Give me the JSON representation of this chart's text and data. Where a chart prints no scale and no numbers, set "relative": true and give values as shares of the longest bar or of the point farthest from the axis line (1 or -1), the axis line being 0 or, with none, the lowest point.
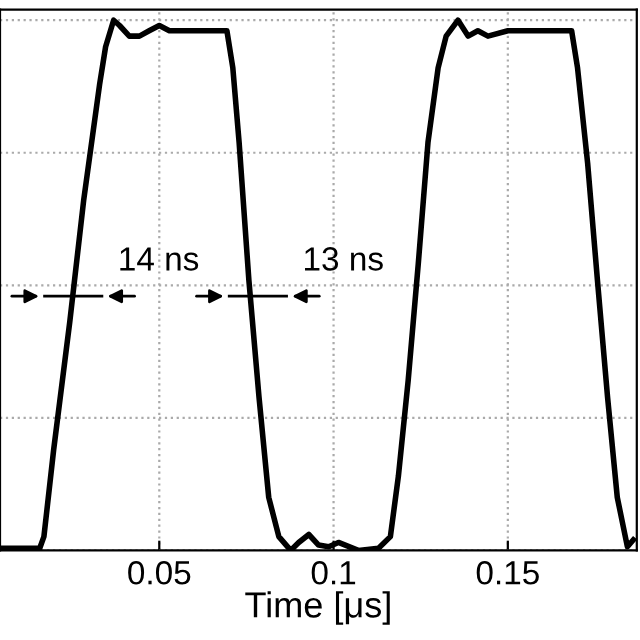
{
  "chart_data": {
    "type": "line",
    "xlabel": "Time [μs]",
    "relative": true,
    "grid": true,
    "legend": false,
    "tick_labels": "x",
    "xlim": [
      0.0043,
      0.187
    ],
    "xticks": [
      0.05,
      0.1,
      0.15
    ],
    "series": [
      {
        "color": "#000000",
        "x": [
          0.0043,
          0.0157,
          0.0169,
          0.0197,
          0.0243,
          0.0283,
          0.0329,
          0.0346,
          0.0369,
          0.0386,
          0.0414,
          0.0443,
          0.0471,
          0.05,
          0.0529,
          0.0557,
          0.0614,
          0.0671,
          0.0694,
          0.0711,
          0.0729,
          0.0757,
          0.0786,
          0.0814,
          0.0843,
          0.0877,
          0.09,
          0.0929,
          0.0957,
          0.0986,
          0.1014,
          0.1071,
          0.1129,
          0.1163,
          0.1186,
          0.1214,
          0.1243,
          0.1271,
          0.13,
          0.1323,
          0.1357,
          0.1386,
          0.1414,
          0.1443,
          0.15,
          0.1557,
          0.1683,
          0.17,
          0.1729,
          0.1757,
          0.1786,
          0.1814,
          0.1843,
          0.186
        ],
        "values": [
          0.004,
          0.004,
          0.026,
          0.19,
          0.43,
          0.66,
          0.88,
          0.95,
          1,
          0.99,
          0.97,
          0.97,
          0.98,
          0.99,
          0.98,
          0.98,
          0.98,
          0.98,
          0.98,
          0.91,
          0.77,
          0.51,
          0.29,
          0.1,
          0.026,
          0,
          0.015,
          0.03,
          0.01,
          0.007,
          0.015,
          0,
          0.004,
          0.026,
          0.14,
          0.32,
          0.54,
          0.77,
          0.91,
          0.97,
          1,
          0.97,
          0.98,
          0.97,
          0.98,
          0.98,
          0.98,
          0.91,
          0.73,
          0.51,
          0.29,
          0.1,
          0.007,
          0.02
        ]
      }
    ],
    "annotations": [
      "14 ns",
      "13 ns"
    ]
  }
}
